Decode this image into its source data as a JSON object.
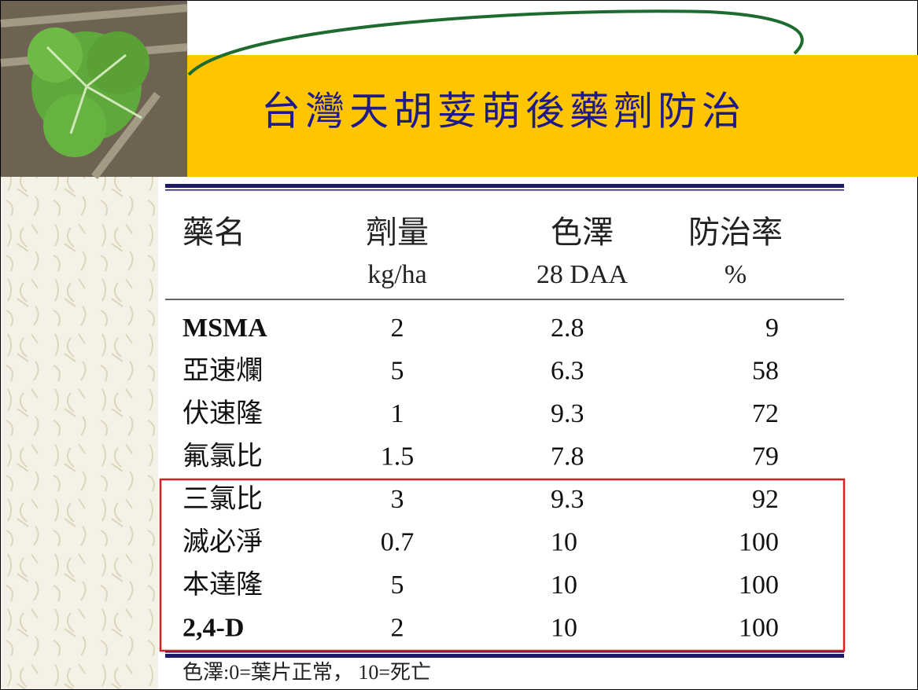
{
  "title": "台灣天胡荽萌後藥劑防治",
  "table": {
    "header": [
      {
        "name": "藥名"
      },
      {
        "name": "劑量",
        "unit": "kg/ha"
      },
      {
        "name": "色澤",
        "unit": "28 DAA"
      },
      {
        "name": "防治率",
        "unit": "%"
      }
    ],
    "rows": [
      [
        "MSMA",
        2,
        2.8,
        9
      ],
      [
        "亞速爛",
        5,
        6.3,
        58
      ],
      [
        "伏速隆",
        1,
        9.3,
        72
      ],
      [
        "氟氯比",
        1.5,
        7.8,
        79
      ],
      [
        "三氯比",
        3,
        9.3,
        92
      ],
      [
        "滅必淨",
        0.7,
        10,
        100
      ],
      [
        "本達隆",
        5,
        10,
        100
      ],
      [
        "2,4-D",
        2,
        10,
        100
      ]
    ]
  },
  "footnote": "色澤:0=葉片正常，  10=死亡"
}
